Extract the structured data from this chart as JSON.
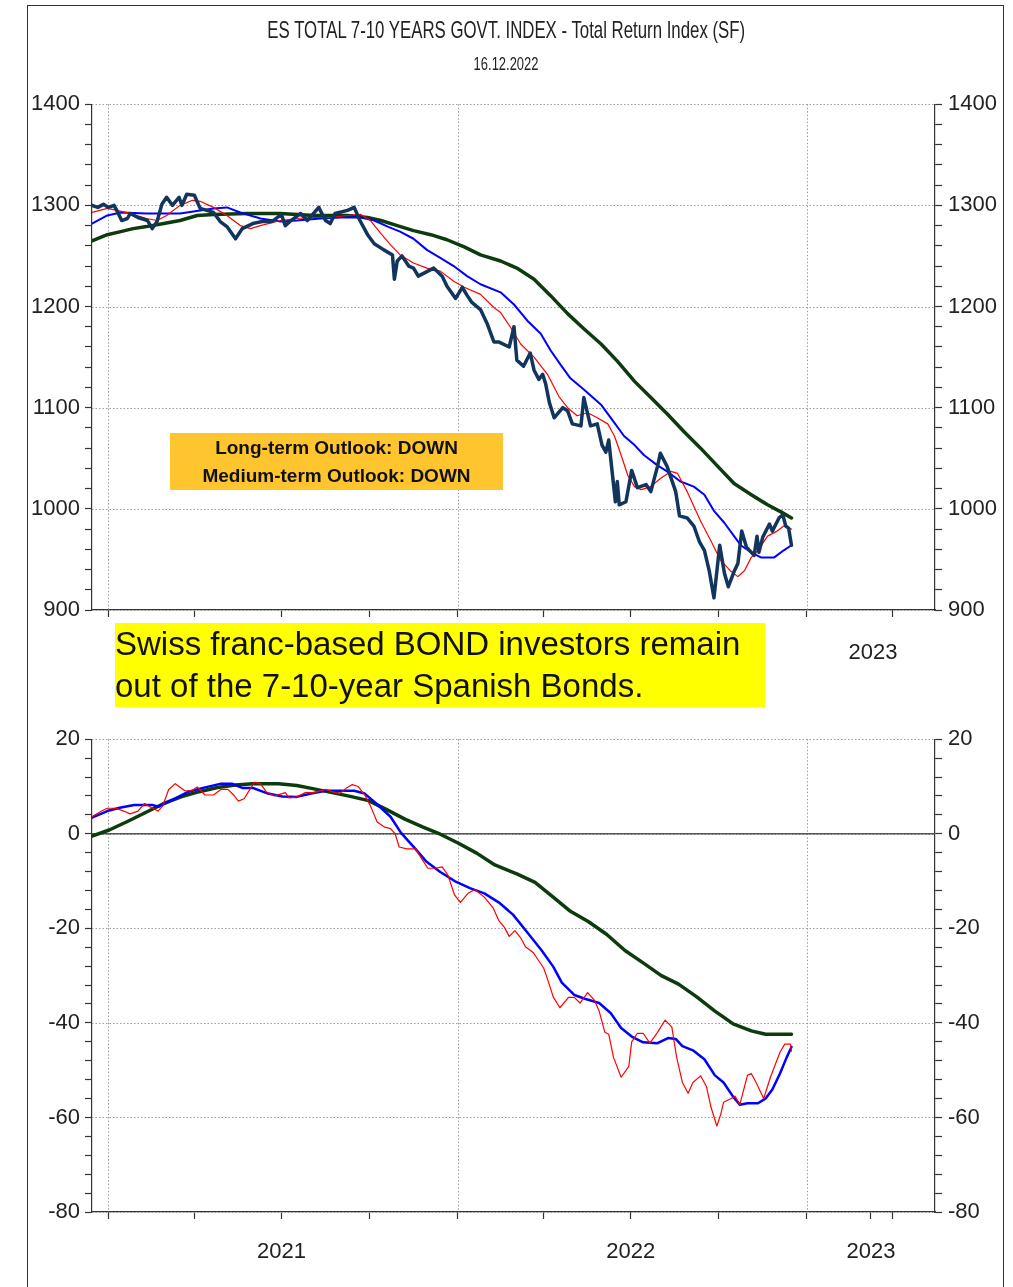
{
  "chart_data": [
    {
      "type": "line",
      "title": "ES TOTAL 7-10 YEARS GOVT. INDEX - Total Return Index (SF)",
      "subtitle": "16.12.2022",
      "annotations": [
        "Long-term Outlook: DOWN\nMedium-term Outlook: DOWN",
        "Swiss franc-based BOND investors remain out of the 7-10-year Spanish Bonds.",
        "2023"
      ],
      "tick_labels": "y",
      "xlim": [
        "2020-12-15",
        "2023-05-15"
      ],
      "xticks": [
        {
          "value": "2021-01-01",
          "label": null
        },
        {
          "value": "2021-04-01",
          "label": null
        },
        {
          "value": "2021-07-01",
          "label": null
        },
        {
          "value": "2021-10-01",
          "label": null
        },
        {
          "value": "2022-01-01",
          "label": null
        },
        {
          "value": "2022-04-01",
          "label": null
        },
        {
          "value": "2022-07-01",
          "label": null
        },
        {
          "value": "2022-10-01",
          "label": null
        },
        {
          "value": "2023-01-01",
          "label": null
        },
        {
          "value": "2023-04-01",
          "label": null
        }
      ],
      "ylim": [
        900,
        1400
      ],
      "yticks": [
        900,
        {
          "value": 920,
          "label": null
        },
        {
          "value": 940,
          "label": null
        },
        {
          "value": 960,
          "label": null
        },
        {
          "value": 980,
          "label": null
        },
        1000,
        {
          "value": 1020,
          "label": null
        },
        {
          "value": 1040,
          "label": null
        },
        {
          "value": 1060,
          "label": null
        },
        {
          "value": 1080,
          "label": null
        },
        1100,
        {
          "value": 1120,
          "label": null
        },
        {
          "value": 1140,
          "label": null
        },
        {
          "value": 1160,
          "label": null
        },
        {
          "value": 1180,
          "label": null
        },
        1200,
        {
          "value": 1220,
          "label": null
        },
        {
          "value": 1240,
          "label": null
        },
        {
          "value": 1260,
          "label": null
        },
        {
          "value": 1280,
          "label": null
        },
        1300,
        {
          "value": 1320,
          "label": null
        },
        {
          "value": 1340,
          "label": null
        },
        {
          "value": 1360,
          "label": null
        },
        {
          "value": 1380,
          "label": null
        },
        1400
      ],
      "y2lim": [
        900,
        1400
      ],
      "y2ticks": [
        900,
        {
          "value": 920,
          "label": null
        },
        {
          "value": 940,
          "label": null
        },
        {
          "value": 960,
          "label": null
        },
        {
          "value": 980,
          "label": null
        },
        1000,
        {
          "value": 1020,
          "label": null
        },
        {
          "value": 1040,
          "label": null
        },
        {
          "value": 1060,
          "label": null
        },
        {
          "value": 1080,
          "label": null
        },
        1100,
        {
          "value": 1120,
          "label": null
        },
        {
          "value": 1140,
          "label": null
        },
        {
          "value": 1160,
          "label": null
        },
        {
          "value": 1180,
          "label": null
        },
        1200,
        {
          "value": 1220,
          "label": null
        },
        {
          "value": 1240,
          "label": null
        },
        {
          "value": 1260,
          "label": null
        },
        {
          "value": 1280,
          "label": null
        },
        1300,
        {
          "value": 1320,
          "label": null
        },
        {
          "value": 1340,
          "label": null
        },
        {
          "value": 1360,
          "label": null
        },
        {
          "value": 1380,
          "label": null
        },
        1400
      ],
      "grid": true,
      "series": [
        {
          "color": "#12355e",
          "x": [
            "2020-12-15",
            "2020-12-21",
            "2020-12-27",
            "2021-01-01",
            "2021-01-07",
            "2021-01-11",
            "2021-01-15",
            "2021-01-21",
            "2021-01-24",
            "2021-02-01",
            "2021-02-11",
            "2021-02-16",
            "2021-02-21",
            "2021-02-26",
            "2021-03-03",
            "2021-03-09",
            "2021-03-16",
            "2021-03-19",
            "2021-03-24",
            "2021-04-01",
            "2021-04-07",
            "2021-04-21",
            "2021-04-28",
            "2021-05-05",
            "2021-05-14",
            "2021-05-21",
            "2021-06-01",
            "2021-06-11",
            "2021-06-21",
            "2021-07-01",
            "2021-07-05",
            "2021-07-11",
            "2021-07-21",
            "2021-07-28",
            "2021-08-09",
            "2021-08-16",
            "2021-08-21",
            "2021-08-26",
            "2021-09-08",
            "2021-09-15",
            "2021-09-21",
            "2021-09-29",
            "2021-10-06",
            "2021-10-16",
            "2021-10-25",
            "2021-10-27",
            "2021-10-30",
            "2021-11-04",
            "2021-11-11",
            "2021-11-16",
            "2021-11-21",
            "2021-12-01",
            "2021-12-07",
            "2021-12-16",
            "2021-12-21",
            "2021-12-30",
            "2022-01-06",
            "2022-01-11",
            "2022-01-16",
            "2022-01-25",
            "2022-02-01",
            "2022-02-08",
            "2022-02-13",
            "2022-02-24",
            "2022-03-01",
            "2022-03-04",
            "2022-03-11",
            "2022-03-18",
            "2022-03-22",
            "2022-03-27",
            "2022-03-31",
            "2022-04-03",
            "2022-04-07",
            "2022-04-12",
            "2022-04-21",
            "2022-04-26",
            "2022-05-01",
            "2022-05-10",
            "2022-05-13",
            "2022-05-20",
            "2022-05-27",
            "2022-06-01",
            "2022-06-05",
            "2022-06-08",
            "2022-06-12",
            "2022-06-15",
            "2022-06-17",
            "2022-06-19",
            "2022-06-26",
            "2022-07-02",
            "2022-07-08",
            "2022-07-17",
            "2022-07-22",
            "2022-07-29",
            "2022-08-01",
            "2022-08-08",
            "2022-08-17",
            "2022-08-21",
            "2022-08-29",
            "2022-09-05",
            "2022-09-11",
            "2022-09-16",
            "2022-09-21",
            "2022-09-26",
            "2022-10-02",
            "2022-10-07",
            "2022-10-11",
            "2022-10-17",
            "2022-10-21",
            "2022-10-25",
            "2022-10-30",
            "2022-11-07",
            "2022-11-10",
            "2022-11-12",
            "2022-11-16",
            "2022-11-23",
            "2022-11-26",
            "2022-12-03",
            "2022-12-07",
            "2022-12-10",
            "2022-12-13",
            "2022-12-16"
          ],
          "values": [
            1300,
            1298,
            1301,
            1298,
            1300,
            1293,
            1285,
            1287,
            1292,
            1288,
            1285,
            1277,
            1284,
            1301,
            1308,
            1300,
            1308,
            1300,
            1311,
            1310,
            1297,
            1293,
            1284,
            1279,
            1267,
            1277,
            1282,
            1284,
            1284,
            1291,
            1280,
            1285,
            1292,
            1285,
            1298,
            1285,
            1282,
            1292,
            1295,
            1298,
            1285,
            1271,
            1262,
            1256,
            1251,
            1227,
            1245,
            1250,
            1240,
            1238,
            1230,
            1235,
            1238,
            1230,
            1220,
            1208,
            1219,
            1211,
            1204,
            1197,
            1183,
            1165,
            1165,
            1160,
            1180,
            1147,
            1141,
            1154,
            1137,
            1128,
            1133,
            1124,
            1105,
            1090,
            1100,
            1097,
            1084,
            1082,
            1110,
            1082,
            1084,
            1063,
            1056,
            1068,
            1033,
            1007,
            1027,
            1004,
            1007,
            1038,
            1021,
            1024,
            1017,
            1042,
            1055,
            1042,
            1017,
            993,
            991,
            983,
            967,
            959,
            939,
            912,
            964,
            936,
            923,
            938,
            946,
            978,
            962,
            954,
            973,
            957,
            972,
            985,
            978,
            991,
            994,
            983,
            981,
            964
          ]
        },
        {
          "color": "#ff0000",
          "x": [
            "2020-12-15",
            "2020-12-31",
            "2021-01-10",
            "2021-01-24",
            "2021-02-10",
            "2021-02-21",
            "2021-03-03",
            "2021-03-17",
            "2021-03-30",
            "2021-04-07",
            "2021-04-21",
            "2021-05-05",
            "2021-05-19",
            "2021-05-30",
            "2021-06-09",
            "2021-06-30",
            "2021-07-17",
            "2021-08-04",
            "2021-08-21",
            "2021-09-08",
            "2021-09-22",
            "2021-10-02",
            "2021-10-13",
            "2021-10-23",
            "2021-11-02",
            "2021-11-16",
            "2021-11-30",
            "2021-12-14",
            "2021-12-28",
            "2022-01-08",
            "2022-01-25",
            "2022-02-08",
            "2022-02-15",
            "2022-02-25",
            "2022-03-08",
            "2022-03-22",
            "2022-04-05",
            "2022-04-17",
            "2022-04-26",
            "2022-05-06",
            "2022-05-17",
            "2022-05-27",
            "2022-06-07",
            "2022-06-14",
            "2022-06-21",
            "2022-06-28",
            "2022-07-05",
            "2022-07-12",
            "2022-07-22",
            "2022-08-01",
            "2022-08-12",
            "2022-08-19",
            "2022-08-29",
            "2022-09-12",
            "2022-09-23",
            "2022-10-03",
            "2022-10-14",
            "2022-10-21",
            "2022-10-28",
            "2022-11-04",
            "2022-11-11",
            "2022-11-21",
            "2022-12-01",
            "2022-12-08",
            "2022-12-16"
          ],
          "values": [
            1293,
            1297,
            1295,
            1292,
            1287,
            1285,
            1290,
            1300,
            1305,
            1304,
            1298,
            1290,
            1280,
            1277,
            1280,
            1285,
            1287,
            1288,
            1288,
            1290,
            1291,
            1285,
            1272,
            1261,
            1251,
            1243,
            1238,
            1235,
            1225,
            1219,
            1212,
            1199,
            1194,
            1180,
            1163,
            1150,
            1133,
            1111,
            1100,
            1092,
            1095,
            1090,
            1084,
            1072,
            1053,
            1033,
            1022,
            1019,
            1022,
            1030,
            1037,
            1035,
            1017,
            988,
            968,
            949,
            938,
            933,
            939,
            952,
            959,
            973,
            978,
            983,
            980
          ]
        },
        {
          "color": "#0000ff",
          "x": [
            "2020-12-15",
            "2020-12-31",
            "2021-01-14",
            "2021-02-10",
            "2021-03-17",
            "2021-04-07",
            "2021-04-21",
            "2021-05-05",
            "2021-05-19",
            "2021-06-09",
            "2021-06-30",
            "2021-07-17",
            "2021-08-11",
            "2021-09-01",
            "2021-09-22",
            "2021-10-06",
            "2021-10-20",
            "2021-11-02",
            "2021-11-16",
            "2021-11-30",
            "2021-12-14",
            "2021-12-28",
            "2022-01-11",
            "2022-01-25",
            "2022-02-15",
            "2022-03-01",
            "2022-03-15",
            "2022-03-29",
            "2022-04-08",
            "2022-04-19",
            "2022-04-29",
            "2022-05-13",
            "2022-05-31",
            "2022-06-14",
            "2022-06-24",
            "2022-07-05",
            "2022-07-15",
            "2022-07-29",
            "2022-08-08",
            "2022-08-22",
            "2022-09-05",
            "2022-09-16",
            "2022-09-26",
            "2022-10-07",
            "2022-10-17",
            "2022-10-24",
            "2022-11-04",
            "2022-11-14",
            "2022-11-28",
            "2022-12-08",
            "2022-12-16"
          ],
          "values": [
            1282,
            1290,
            1293,
            1292,
            1292,
            1295,
            1297,
            1298,
            1293,
            1287,
            1284,
            1285,
            1287,
            1288,
            1288,
            1285,
            1279,
            1274,
            1267,
            1256,
            1248,
            1240,
            1230,
            1222,
            1214,
            1202,
            1186,
            1173,
            1157,
            1142,
            1129,
            1118,
            1103,
            1085,
            1072,
            1063,
            1053,
            1043,
            1037,
            1027,
            1022,
            1014,
            998,
            986,
            973,
            964,
            957,
            952,
            952,
            959,
            964
          ]
        },
        {
          "color": "#0d3b0d",
          "x": [
            "2020-12-15",
            "2020-12-31",
            "2021-01-14",
            "2021-01-27",
            "2021-02-10",
            "2021-02-28",
            "2021-03-17",
            "2021-04-04",
            "2021-04-21",
            "2021-05-26",
            "2021-06-30",
            "2021-08-04",
            "2021-09-08",
            "2021-09-29",
            "2021-10-13",
            "2021-10-30",
            "2021-11-16",
            "2021-12-04",
            "2021-12-21",
            "2022-01-08",
            "2022-01-25",
            "2022-02-15",
            "2022-03-04",
            "2022-03-22",
            "2022-04-08",
            "2022-04-26",
            "2022-05-13",
            "2022-05-31",
            "2022-06-17",
            "2022-07-05",
            "2022-07-22",
            "2022-08-08",
            "2022-08-26",
            "2022-09-12",
            "2022-09-30",
            "2022-10-17",
            "2022-11-04",
            "2022-11-21",
            "2022-12-05",
            "2022-12-16"
          ],
          "values": [
            1265,
            1271,
            1274,
            1277,
            1279,
            1282,
            1285,
            1290,
            1291,
            1292,
            1292,
            1290,
            1290,
            1288,
            1285,
            1280,
            1275,
            1271,
            1266,
            1259,
            1251,
            1245,
            1238,
            1227,
            1211,
            1193,
            1178,
            1163,
            1146,
            1126,
            1110,
            1094,
            1076,
            1060,
            1042,
            1025,
            1014,
            1004,
            997,
            991
          ]
        }
      ]
    },
    {
      "type": "line",
      "xlim": [
        "2020-12-15",
        "2023-05-15"
      ],
      "xticks": [
        {
          "value": "2021-01-01",
          "label": null
        },
        {
          "value": "2021-04-01",
          "label": null
        },
        {
          "value": "2021-07-01",
          "label": "2021"
        },
        {
          "value": "2021-10-01",
          "label": null
        },
        {
          "value": "2022-01-01",
          "label": null
        },
        {
          "value": "2022-04-01",
          "label": null
        },
        {
          "value": "2022-07-01",
          "label": "2022"
        },
        {
          "value": "2022-10-01",
          "label": null
        },
        {
          "value": "2023-01-01",
          "label": null
        },
        {
          "value": "2023-03-09",
          "label": "2023"
        },
        {
          "value": "2023-04-01",
          "label": null
        }
      ],
      "ylim": [
        -80,
        20
      ],
      "yticks": [
        -80,
        {
          "value": -76,
          "label": null
        },
        {
          "value": -72,
          "label": null
        },
        {
          "value": -68,
          "label": null
        },
        {
          "value": -64,
          "label": null
        },
        -60,
        {
          "value": -56,
          "label": null
        },
        {
          "value": -52,
          "label": null
        },
        {
          "value": -48,
          "label": null
        },
        {
          "value": -44,
          "label": null
        },
        -40,
        {
          "value": -36,
          "label": null
        },
        {
          "value": -32,
          "label": null
        },
        {
          "value": -28,
          "label": null
        },
        {
          "value": -24,
          "label": null
        },
        -20,
        {
          "value": -16,
          "label": null
        },
        {
          "value": -12,
          "label": null
        },
        {
          "value": -8,
          "label": null
        },
        {
          "value": -4,
          "label": null
        },
        0,
        {
          "value": 4,
          "label": null
        },
        {
          "value": 8,
          "label": null
        },
        {
          "value": 12,
          "label": null
        },
        {
          "value": 16,
          "label": null
        },
        20
      ],
      "y2lim": [
        -80,
        20
      ],
      "y2ticks": [
        -80,
        {
          "value": -76,
          "label": null
        },
        {
          "value": -72,
          "label": null
        },
        {
          "value": -68,
          "label": null
        },
        {
          "value": -64,
          "label": null
        },
        -60,
        {
          "value": -56,
          "label": null
        },
        {
          "value": -52,
          "label": null
        },
        {
          "value": -48,
          "label": null
        },
        {
          "value": -44,
          "label": null
        },
        -40,
        {
          "value": -36,
          "label": null
        },
        {
          "value": -32,
          "label": null
        },
        {
          "value": -28,
          "label": null
        },
        {
          "value": -24,
          "label": null
        },
        -20,
        {
          "value": -16,
          "label": null
        },
        {
          "value": -12,
          "label": null
        },
        {
          "value": -8,
          "label": null
        },
        {
          "value": -4,
          "label": null
        },
        0,
        {
          "value": 4,
          "label": null
        },
        {
          "value": 8,
          "label": null
        },
        {
          "value": 12,
          "label": null
        },
        {
          "value": 16,
          "label": null
        },
        20
      ],
      "grid": true,
      "ref_lines": [
        {
          "axis": "y",
          "value": 0,
          "color": "#555555"
        }
      ],
      "series": [
        {
          "color": "#ff0000",
          "x": [
            "2020-12-15",
            "2020-12-25",
            "2020-12-31",
            "2021-01-09",
            "2021-01-17",
            "2021-01-24",
            "2021-02-01",
            "2021-02-08",
            "2021-02-16",
            "2021-02-22",
            "2021-02-27",
            "2021-03-05",
            "2021-03-12",
            "2021-03-22",
            "2021-03-29",
            "2021-04-04",
            "2021-04-12",
            "2021-04-21",
            "2021-04-29",
            "2021-05-06",
            "2021-05-12",
            "2021-05-17",
            "2021-05-23",
            "2021-05-29",
            "2021-06-03",
            "2021-06-09",
            "2021-06-15",
            "2021-06-24",
            "2021-07-05",
            "2021-07-09",
            "2021-07-17",
            "2021-07-26",
            "2021-08-04",
            "2021-08-16",
            "2021-08-23",
            "2021-08-31",
            "2021-09-07",
            "2021-09-13",
            "2021-09-19",
            "2021-09-26",
            "2021-10-02",
            "2021-10-09",
            "2021-10-17",
            "2021-10-23",
            "2021-10-28",
            "2021-11-01",
            "2021-11-09",
            "2021-11-18",
            "2021-11-24",
            "2021-12-01",
            "2021-12-09",
            "2021-12-16",
            "2021-12-22",
            "2021-12-29",
            "2022-01-04",
            "2022-01-12",
            "2022-01-19",
            "2022-01-29",
            "2022-02-07",
            "2022-02-13",
            "2022-02-19",
            "2022-02-24",
            "2022-03-02",
            "2022-03-08",
            "2022-03-13",
            "2022-03-21",
            "2022-03-26",
            "2022-04-01",
            "2022-04-05",
            "2022-04-11",
            "2022-04-18",
            "2022-04-27",
            "2022-05-03",
            "2022-05-09",
            "2022-05-17",
            "2022-05-24",
            "2022-05-29",
            "2022-06-04",
            "2022-06-08",
            "2022-06-13",
            "2022-06-21",
            "2022-06-29",
            "2022-07-02",
            "2022-07-08",
            "2022-07-14",
            "2022-07-21",
            "2022-07-29",
            "2022-08-06",
            "2022-08-13",
            "2022-08-18",
            "2022-08-24",
            "2022-08-30",
            "2022-09-04",
            "2022-09-12",
            "2022-09-18",
            "2022-09-23",
            "2022-09-29",
            "2022-10-03",
            "2022-10-06",
            "2022-10-14",
            "2022-10-18",
            "2022-10-23",
            "2022-10-31",
            "2022-11-04",
            "2022-11-09",
            "2022-11-17",
            "2022-11-24",
            "2022-12-04",
            "2022-12-09",
            "2022-12-15",
            "2022-12-16"
          ],
          "values": [
            3.6,
            4.8,
            5.4,
            5.4,
            4.8,
            4.2,
            4.8,
            6.4,
            5.4,
            4.8,
            5.9,
            9.3,
            10.6,
            9.1,
            9.1,
            9.9,
            8.2,
            8.2,
            9.4,
            9.4,
            8.2,
            6.9,
            7.4,
            9.4,
            10.9,
            10.6,
            8.9,
            8.0,
            8.7,
            7.6,
            7.8,
            8.7,
            8.7,
            9.4,
            8.9,
            8.5,
            9.7,
            10.4,
            10.0,
            8.2,
            5.9,
            2.5,
            1.4,
            1.1,
            -0.1,
            -2.8,
            -3.2,
            -3.2,
            -5.1,
            -7.3,
            -7.3,
            -7.0,
            -8.8,
            -13.0,
            -14.5,
            -12.6,
            -11.8,
            -13.4,
            -15.6,
            -18.3,
            -19.8,
            -21.7,
            -20.5,
            -22.0,
            -23.9,
            -25.1,
            -26.6,
            -28.4,
            -30.7,
            -34.5,
            -36.8,
            -34.6,
            -34.6,
            -35.8,
            -33.6,
            -35.2,
            -37.5,
            -42.0,
            -42.4,
            -47.3,
            -51.5,
            -49.2,
            -44.0,
            -42.2,
            -42.2,
            -44.3,
            -42.0,
            -39.4,
            -40.9,
            -47.3,
            -52.6,
            -54.9,
            -52.6,
            -51.2,
            -53.4,
            -57.9,
            -61.8,
            -59.4,
            -56.8,
            -56.0,
            -55.5,
            -57.3,
            -51.1,
            -50.7,
            -52.6,
            -56.0,
            -51.5,
            -46.2,
            -44.5,
            -44.5,
            -46.0
          ]
        },
        {
          "color": "#0000ff",
          "x": [
            "2020-12-15",
            "2020-12-31",
            "2021-01-13",
            "2021-01-28",
            "2021-02-16",
            "2021-02-22",
            "2021-03-11",
            "2021-03-26",
            "2021-04-10",
            "2021-04-29",
            "2021-05-10",
            "2021-05-21",
            "2021-06-01",
            "2021-06-17",
            "2021-07-02",
            "2021-07-17",
            "2021-08-01",
            "2021-08-16",
            "2021-08-31",
            "2021-09-15",
            "2021-09-26",
            "2021-10-08",
            "2021-10-23",
            "2021-11-03",
            "2021-11-18",
            "2021-11-29",
            "2021-12-14",
            "2021-12-29",
            "2022-01-14",
            "2022-01-29",
            "2022-02-13",
            "2022-02-28",
            "2022-03-15",
            "2022-03-30",
            "2022-04-11",
            "2022-04-20",
            "2022-05-03",
            "2022-05-14",
            "2022-05-29",
            "2022-06-10",
            "2022-06-21",
            "2022-07-02",
            "2022-07-14",
            "2022-07-29",
            "2022-08-09",
            "2022-08-17",
            "2022-08-24",
            "2022-09-04",
            "2022-09-16",
            "2022-09-27",
            "2022-10-06",
            "2022-10-16",
            "2022-10-23",
            "2022-10-31",
            "2022-11-11",
            "2022-11-19",
            "2022-11-26",
            "2022-12-04",
            "2022-12-11",
            "2022-12-16"
          ],
          "values": [
            3.4,
            4.8,
            5.5,
            6.1,
            6.1,
            5.7,
            7.4,
            8.9,
            9.7,
            10.6,
            10.6,
            9.7,
            9.7,
            8.5,
            7.9,
            7.8,
            8.5,
            9.1,
            9.1,
            9.1,
            8.5,
            6.4,
            3.6,
            0.2,
            -3.2,
            -5.8,
            -8.1,
            -10.0,
            -11.5,
            -12.6,
            -14.5,
            -17.1,
            -20.9,
            -24.7,
            -28.1,
            -31.5,
            -34.1,
            -34.9,
            -35.8,
            -37.9,
            -41.1,
            -42.9,
            -44.1,
            -44.3,
            -43.2,
            -43.4,
            -44.9,
            -45.8,
            -47.7,
            -51.1,
            -52.6,
            -55.6,
            -57.3,
            -57.0,
            -57.0,
            -56.0,
            -54.1,
            -50.7,
            -47.3,
            -45.1
          ]
        },
        {
          "color": "#0d3b0d",
          "x": [
            "2020-12-15",
            "2021-01-02",
            "2021-01-21",
            "2021-02-08",
            "2021-02-27",
            "2021-03-18",
            "2021-04-06",
            "2021-04-25",
            "2021-05-14",
            "2021-06-01",
            "2021-06-28",
            "2021-07-17",
            "2021-08-04",
            "2021-08-23",
            "2021-09-11",
            "2021-09-30",
            "2021-10-19",
            "2021-11-07",
            "2021-11-26",
            "2021-12-14",
            "2022-01-02",
            "2022-01-21",
            "2022-02-09",
            "2022-03-04",
            "2022-03-23",
            "2022-04-11",
            "2022-04-29",
            "2022-05-18",
            "2022-06-06",
            "2022-06-25",
            "2022-07-14",
            "2022-08-02",
            "2022-08-20",
            "2022-09-08",
            "2022-09-27",
            "2022-10-16",
            "2022-11-04",
            "2022-11-19",
            "2022-12-04",
            "2022-12-16"
          ],
          "values": [
            -0.5,
            0.8,
            2.6,
            4.4,
            6.3,
            7.8,
            8.9,
            9.8,
            10.3,
            10.6,
            10.6,
            10.2,
            9.5,
            8.7,
            7.9,
            7.0,
            5.1,
            3.1,
            1.4,
            -0.1,
            -2.0,
            -4.1,
            -6.6,
            -8.5,
            -10.3,
            -13.4,
            -16.4,
            -18.6,
            -21.3,
            -24.7,
            -27.3,
            -30.0,
            -31.8,
            -34.5,
            -37.5,
            -40.2,
            -41.7,
            -42.4,
            -42.4,
            -42.4
          ]
        }
      ]
    }
  ]
}
